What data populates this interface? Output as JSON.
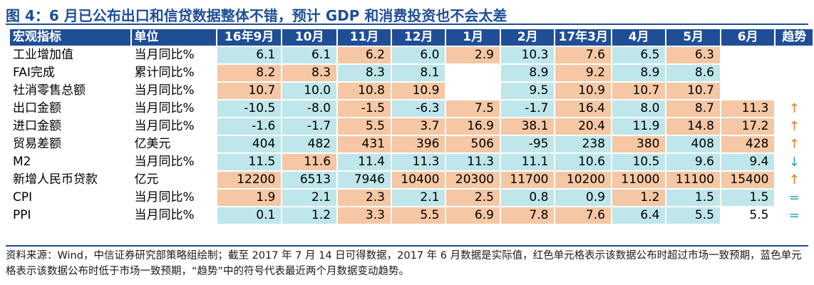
{
  "title": "图 4：6 月已公布出口和信贷数据整体不错，预计 GDP 和消费投资也不会太差",
  "colors": {
    "header_bg": "#1f4e96",
    "above": "#f5c7a4",
    "below": "#bfe6ea",
    "up": "#e87c1e",
    "down": "#2a9fbf",
    "equal": "#2a9fbf"
  },
  "headers": [
    "宏观指标",
    "单位",
    "16年9月",
    "10月",
    "11月",
    "12月",
    "1月",
    "2月",
    "17年3月",
    "4月",
    "5月",
    "6月",
    "趋势"
  ],
  "rows": [
    {
      "name": "工业增加值",
      "unit": "当月同比%",
      "cells": [
        [
          "6.1",
          "b"
        ],
        [
          "6.1",
          "b"
        ],
        [
          "6.2",
          "o"
        ],
        [
          "6.0",
          "b"
        ],
        [
          "2.9",
          "o"
        ],
        [
          "10.3",
          "b"
        ],
        [
          "7.6",
          "o"
        ],
        [
          "6.5",
          "b"
        ],
        [
          "6.3",
          "o"
        ],
        [
          "",
          "w"
        ]
      ],
      "trend": "",
      "trend_icon": ""
    },
    {
      "name": "FAI完成",
      "unit": "累计同比%",
      "cells": [
        [
          "8.2",
          "o"
        ],
        [
          "8.3",
          "o"
        ],
        [
          "8.3",
          "b"
        ],
        [
          "8.1",
          "b"
        ],
        [
          "",
          "w"
        ],
        [
          "8.9",
          "b"
        ],
        [
          "9.2",
          "o"
        ],
        [
          "8.9",
          "b"
        ],
        [
          "8.6",
          "b"
        ],
        [
          "",
          "w"
        ]
      ],
      "trend": "",
      "trend_icon": ""
    },
    {
      "name": "社消零售总额",
      "unit": "当月同比%",
      "cells": [
        [
          "10.7",
          "o"
        ],
        [
          "10.0",
          "b"
        ],
        [
          "10.8",
          "o"
        ],
        [
          "10.9",
          "o"
        ],
        [
          "",
          "w"
        ],
        [
          "9.5",
          "b"
        ],
        [
          "10.9",
          "o"
        ],
        [
          "10.7",
          "o"
        ],
        [
          "10.7",
          "o"
        ],
        [
          "",
          "w"
        ]
      ],
      "trend": "",
      "trend_icon": ""
    },
    {
      "name": "出口金额",
      "unit": "当月同比%",
      "cells": [
        [
          "-10.5",
          "b"
        ],
        [
          "-8.0",
          "b"
        ],
        [
          "-1.5",
          "o"
        ],
        [
          "-6.3",
          "b"
        ],
        [
          "7.5",
          "o"
        ],
        [
          "-1.7",
          "b"
        ],
        [
          "16.4",
          "o"
        ],
        [
          "8.0",
          "b"
        ],
        [
          "8.7",
          "o"
        ],
        [
          "11.3",
          "o"
        ]
      ],
      "trend": "↑",
      "trend_icon": "arrow-up-icon"
    },
    {
      "name": "进口金额",
      "unit": "当月同比%",
      "cells": [
        [
          "-1.6",
          "b"
        ],
        [
          "-1.7",
          "b"
        ],
        [
          "5.5",
          "o"
        ],
        [
          "3.7",
          "o"
        ],
        [
          "16.9",
          "o"
        ],
        [
          "38.1",
          "o"
        ],
        [
          "20.4",
          "o"
        ],
        [
          "11.9",
          "b"
        ],
        [
          "14.8",
          "o"
        ],
        [
          "17.2",
          "o"
        ]
      ],
      "trend": "↑",
      "trend_icon": "arrow-up-icon"
    },
    {
      "name": "贸易差额",
      "unit": "亿美元",
      "cells": [
        [
          "404",
          "b"
        ],
        [
          "482",
          "b"
        ],
        [
          "431",
          "o"
        ],
        [
          "396",
          "o"
        ],
        [
          "506",
          "o"
        ],
        [
          "-95",
          "b"
        ],
        [
          "238",
          "b"
        ],
        [
          "380",
          "o"
        ],
        [
          "408",
          "b"
        ],
        [
          "428",
          "o"
        ]
      ],
      "trend": "↑",
      "trend_icon": "arrow-up-icon"
    },
    {
      "name": "M2",
      "unit": "当月同比%",
      "cells": [
        [
          "11.5",
          "b"
        ],
        [
          "11.6",
          "o"
        ],
        [
          "11.4",
          "b"
        ],
        [
          "11.3",
          "b"
        ],
        [
          "11.3",
          "b"
        ],
        [
          "11.1",
          "b"
        ],
        [
          "10.6",
          "b"
        ],
        [
          "10.5",
          "b"
        ],
        [
          "9.6",
          "b"
        ],
        [
          "9.4",
          "b"
        ]
      ],
      "trend": "↓",
      "trend_icon": "arrow-down-icon"
    },
    {
      "name": "新增人民币贷款",
      "unit": "亿元",
      "cells": [
        [
          "12200",
          "o"
        ],
        [
          "6513",
          "b"
        ],
        [
          "7946",
          "b"
        ],
        [
          "10400",
          "o"
        ],
        [
          "20300",
          "o"
        ],
        [
          "11700",
          "o"
        ],
        [
          "10200",
          "o"
        ],
        [
          "11000",
          "o"
        ],
        [
          "11100",
          "o"
        ],
        [
          "15400",
          "o"
        ]
      ],
      "trend": "↑",
      "trend_icon": "arrow-up-icon"
    },
    {
      "name": "CPI",
      "unit": "当月同比%",
      "cells": [
        [
          "1.9",
          "o"
        ],
        [
          "2.1",
          "b"
        ],
        [
          "2.3",
          "o"
        ],
        [
          "2.1",
          "b"
        ],
        [
          "2.5",
          "o"
        ],
        [
          "0.8",
          "b"
        ],
        [
          "0.9",
          "b"
        ],
        [
          "1.2",
          "o"
        ],
        [
          "1.5",
          "b"
        ],
        [
          "1.5",
          "b"
        ]
      ],
      "trend": "=",
      "trend_icon": "equal-icon"
    },
    {
      "name": "PPI",
      "unit": "当月同比%",
      "cells": [
        [
          "0.1",
          "b"
        ],
        [
          "1.2",
          "b"
        ],
        [
          "3.3",
          "o"
        ],
        [
          "5.5",
          "o"
        ],
        [
          "6.9",
          "o"
        ],
        [
          "7.8",
          "o"
        ],
        [
          "7.6",
          "o"
        ],
        [
          "6.4",
          "b"
        ],
        [
          "5.5",
          "b"
        ],
        [
          "5.5",
          "w"
        ]
      ],
      "trend": "=",
      "trend_icon": "equal-icon"
    }
  ],
  "footnote": "资料来源：Wind，中信证券研究部策略组绘制；截至 2017 年 7 月 14 日可得数据，2017 年 6 月数据是实际值，红色单元格表示该数据公布时超过市场一致预期，蓝色单元格表示该数据公布时低于市场一致预期，“趋势”中的符号代表最近两个月数据变动趋势。"
}
